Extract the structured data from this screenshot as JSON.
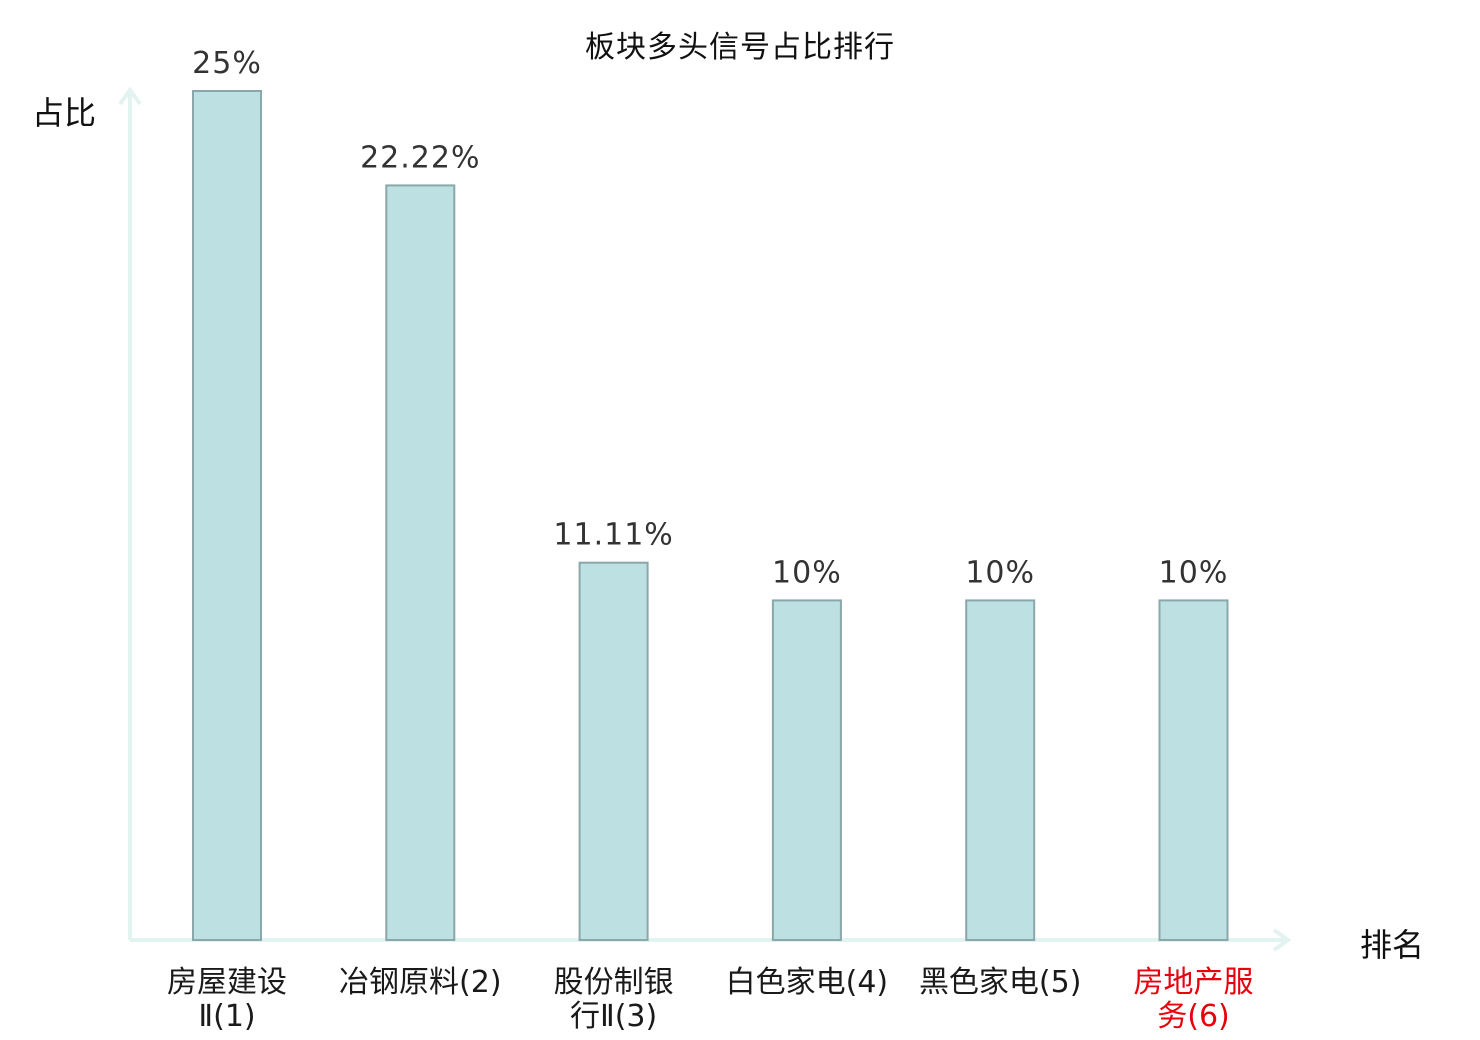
{
  "chart_data": {
    "type": "bar",
    "title": "板块多头信号占比排行",
    "ylabel": "占比",
    "xlabel": "排名",
    "ylim": [
      0,
      25
    ],
    "grid": false,
    "categories": [
      {
        "name_lines": [
          "房屋建设",
          "Ⅱ(1)"
        ],
        "highlight": false
      },
      {
        "name_lines": [
          "冶钢原料(2)"
        ],
        "highlight": false
      },
      {
        "name_lines": [
          "股份制银",
          "行Ⅱ(3)"
        ],
        "highlight": false
      },
      {
        "name_lines": [
          "白色家电(4)"
        ],
        "highlight": false
      },
      {
        "name_lines": [
          "黑色家电(5)"
        ],
        "highlight": false
      },
      {
        "name_lines": [
          "房地产服",
          "务(6)"
        ],
        "highlight": true
      }
    ],
    "values": [
      25,
      22.22,
      11.11,
      10,
      10,
      10
    ],
    "value_labels": [
      "25%",
      "22.22%",
      "11.11%",
      "10%",
      "10%",
      "10%"
    ],
    "colors": {
      "bar_fill": "#bde0e2",
      "bar_stroke": "#8aa7a9",
      "axis": "#e2f3f0",
      "highlight_text": "#e8000b",
      "text": "#1a1a1a"
    }
  }
}
